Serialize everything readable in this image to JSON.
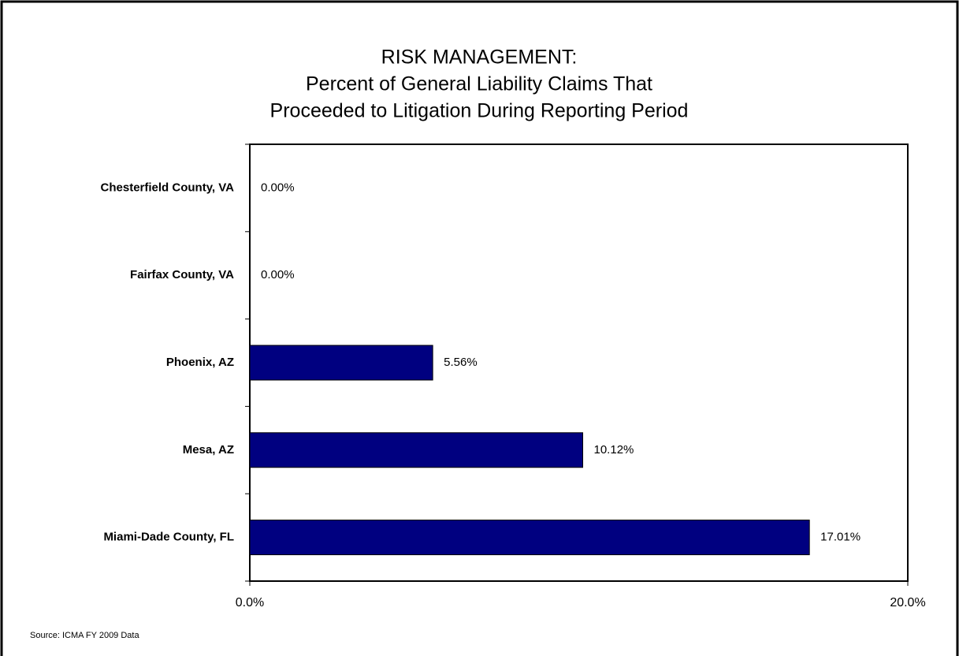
{
  "chart_data": {
    "type": "hbar",
    "title": [
      "RISK MANAGEMENT:",
      "Percent of General Liability Claims That",
      "Proceeded to Litigation During Reporting Period"
    ],
    "source": "Source: ICMA FY 2009 Data",
    "categories": [
      "Chesterfield County, VA",
      "Fairfax County, VA",
      "Phoenix, AZ",
      "Mesa, AZ",
      "Miami-Dade County, FL"
    ],
    "values": [
      0,
      0,
      5.56,
      10.12,
      17.01
    ],
    "value_labels": [
      "0.00%",
      "0.00%",
      "5.56%",
      "10.12%",
      "17.01%"
    ],
    "color": "#000080",
    "xlim": [
      0,
      20
    ],
    "xticks": [
      {
        "value": 0,
        "label": "0.0%"
      },
      {
        "value": 20,
        "label": "20.0%"
      }
    ]
  }
}
